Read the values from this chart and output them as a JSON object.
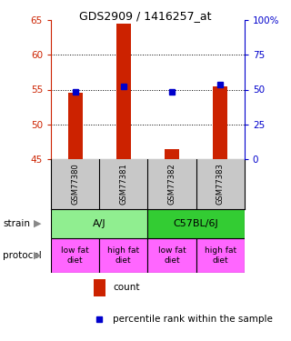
{
  "title": "GDS2909 / 1416257_at",
  "samples": [
    "GSM77380",
    "GSM77381",
    "GSM77382",
    "GSM77383"
  ],
  "red_values": [
    54.5,
    64.5,
    46.4,
    55.5
  ],
  "blue_values": [
    54.7,
    55.5,
    54.7,
    55.7
  ],
  "y_min": 45,
  "y_max": 65,
  "y_ticks": [
    45,
    50,
    55,
    60,
    65
  ],
  "y2_ticks": [
    0,
    25,
    50,
    75,
    100
  ],
  "y2_labels": [
    "0",
    "25",
    "50",
    "75",
    "100%"
  ],
  "strain_labels": [
    "A/J",
    "C57BL/6J"
  ],
  "strain_color_aj": "#90EE90",
  "strain_color_c57": "#33CC33",
  "protocol_labels": [
    "low fat\ndiet",
    "high fat\ndiet",
    "low fat\ndiet",
    "high fat\ndiet"
  ],
  "protocol_color": "#FF66FF",
  "sample_bg_color": "#C8C8C8",
  "red_color": "#CC2200",
  "blue_color": "#0000CC",
  "legend_red": "count",
  "legend_blue": "percentile rank within the sample",
  "bar_width": 0.3
}
